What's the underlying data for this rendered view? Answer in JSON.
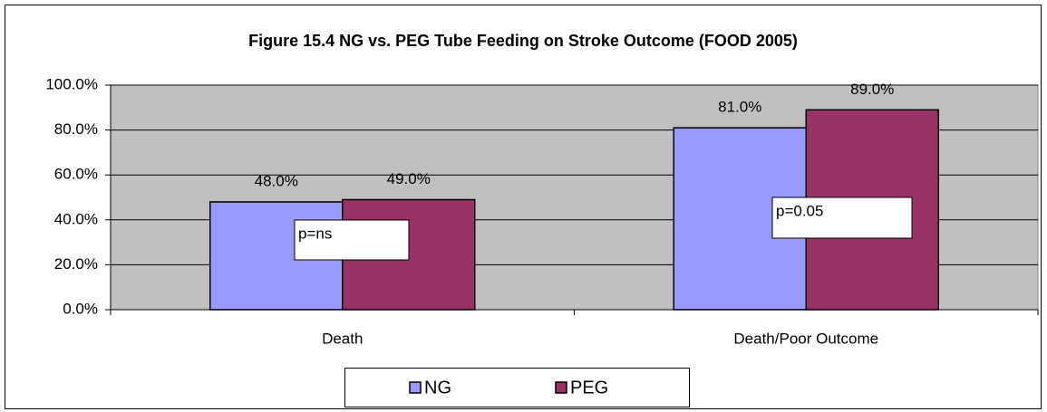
{
  "chart_data": {
    "type": "bar",
    "title": "Figure 15.4 NG vs. PEG Tube Feeding on Stroke Outcome (FOOD 2005)",
    "categories": [
      "Death",
      "Death/Poor Outcome"
    ],
    "series": [
      {
        "name": "NG",
        "color": "#9999ff",
        "values": [
          48,
          81
        ],
        "value_labels": [
          "48.0%",
          "81.0%"
        ]
      },
      {
        "name": "PEG",
        "color": "#993366",
        "values": [
          49,
          89
        ],
        "value_labels": [
          "49.0%",
          "89.0%"
        ]
      }
    ],
    "ylim": [
      0,
      100
    ],
    "yticks": [
      {
        "value": 0,
        "label": "0.0%"
      },
      {
        "value": 20,
        "label": "20.0%"
      },
      {
        "value": 40,
        "label": "40.0%"
      },
      {
        "value": 60,
        "label": "60.0%"
      },
      {
        "value": 80,
        "label": "80.0%"
      },
      {
        "value": 100,
        "label": "100.0%"
      }
    ],
    "grid": true,
    "legend": "bottom",
    "annotations": [
      "p=ns",
      "p=0.05"
    ]
  }
}
